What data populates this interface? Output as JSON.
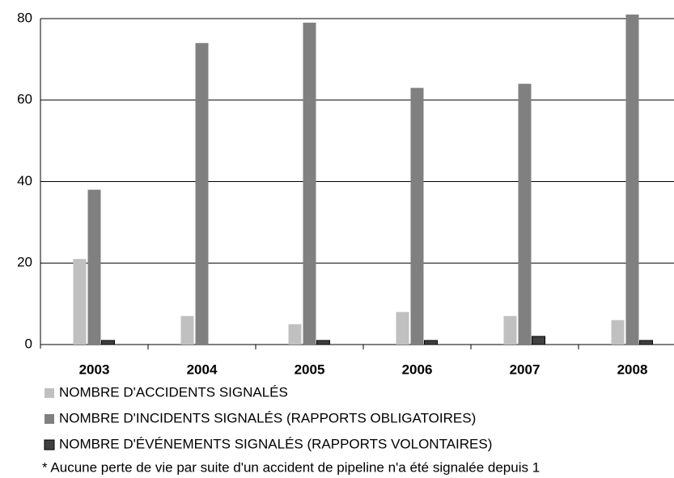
{
  "chart_data": {
    "type": "bar",
    "categories": [
      "2003",
      "2004",
      "2005",
      "2006",
      "2007",
      "2008"
    ],
    "series": [
      {
        "name": "NOMBRE D'ACCIDENTS SIGNALÉS",
        "color": "#c0c0c0",
        "values": [
          21,
          7,
          5,
          8,
          7,
          6
        ]
      },
      {
        "name": "NOMBRE D'INCIDENTS SIGNALÉS (RAPPORTS OBLIGATOIRES)",
        "color": "#808080",
        "values": [
          38,
          74,
          79,
          63,
          64,
          81
        ]
      },
      {
        "name": "NOMBRE D'ÉVÉNEMENTS SIGNALÉS (RAPPORTS VOLONTAIRES)",
        "color": "#404040",
        "values": [
          1,
          0,
          1,
          1,
          2,
          1
        ]
      }
    ],
    "ylim": [
      0,
      80
    ],
    "yticks": [
      0,
      20,
      40,
      60,
      80
    ],
    "grid": true,
    "annotation": "* Aucune perte de vie par suite d'un accident de pipeline n'a été signalée depuis 1"
  }
}
